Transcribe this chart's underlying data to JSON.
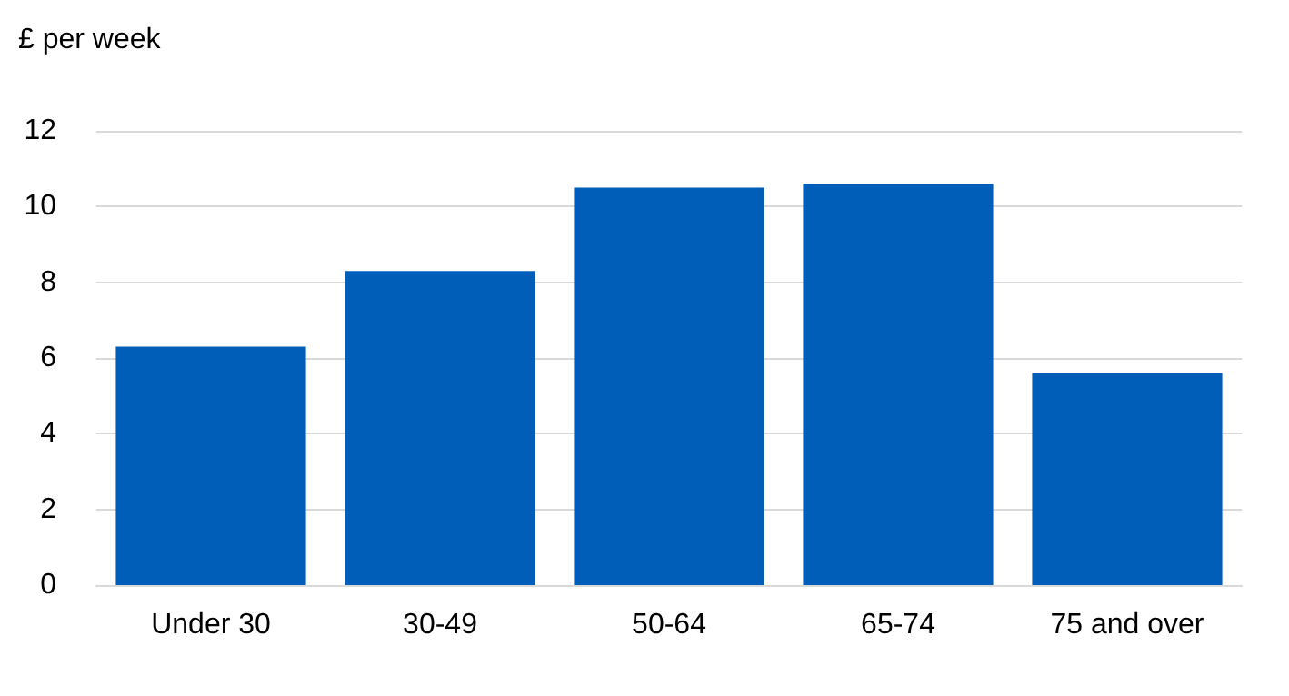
{
  "chart_data": {
    "type": "bar",
    "ylabel": "£ per week",
    "categories": [
      "Under 30",
      "30-49",
      "50-64",
      "65-74",
      "75 and over"
    ],
    "values": [
      6.3,
      8.3,
      10.5,
      10.6,
      5.6
    ],
    "color": "#005eb8",
    "ylim": [
      0,
      12
    ],
    "yticks": [
      0,
      2,
      4,
      6,
      8,
      10,
      12
    ],
    "grid": "y"
  }
}
